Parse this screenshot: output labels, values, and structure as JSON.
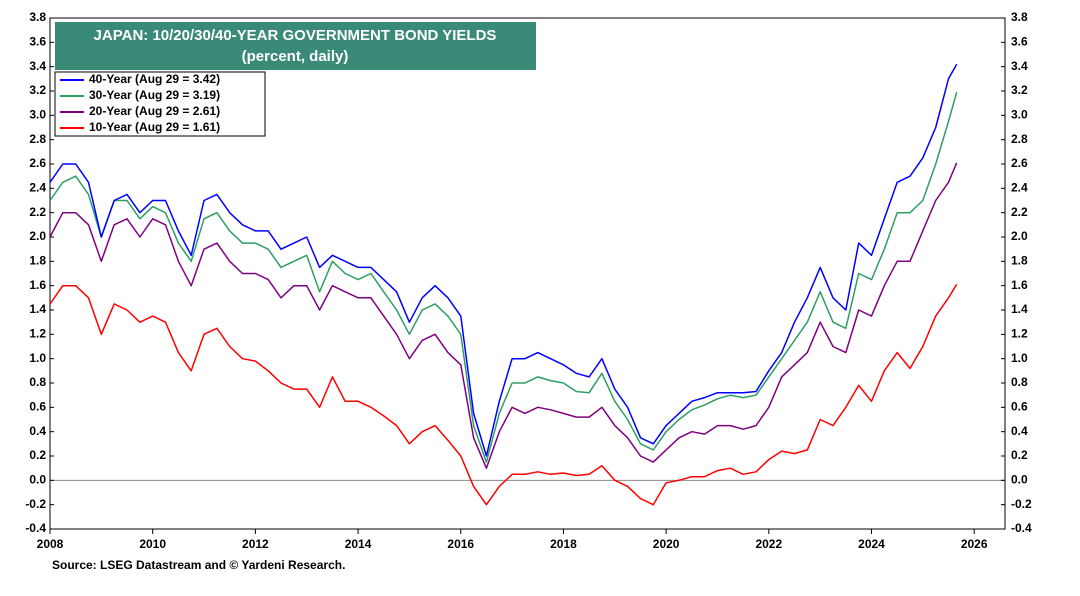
{
  "chart_data": {
    "type": "line",
    "title": "JAPAN: 10/20/30/40-YEAR GOVERNMENT BOND YIELDS",
    "subtitle": "(percent, daily)",
    "source": "Source: LSEG Datastream and © Yardeni Research.",
    "legend": "upper left",
    "zero_line": true,
    "xlim": [
      2008,
      2026.6
    ],
    "xticks": [
      2008,
      2010,
      2012,
      2014,
      2016,
      2018,
      2020,
      2022,
      2024,
      2026
    ],
    "ylim": [
      -0.4,
      3.8
    ],
    "yticks": [
      -0.4,
      -0.2,
      {
        "value": 0,
        "label": "0.0"
      },
      0.2,
      0.4,
      0.6,
      0.8,
      {
        "value": 1,
        "label": "1.0"
      },
      1.2,
      1.4,
      1.6,
      1.8,
      {
        "value": 2,
        "label": "2.0"
      },
      2.2,
      2.4,
      2.6,
      2.8,
      {
        "value": 3,
        "label": "3.0"
      },
      3.2,
      3.4,
      3.6,
      3.8
    ],
    "y2lim": [
      -0.4,
      3.8
    ],
    "y2ticks": [
      -0.4,
      -0.2,
      {
        "value": 0,
        "label": "0.0"
      },
      0.2,
      0.4,
      0.6,
      0.8,
      {
        "value": 1,
        "label": "1.0"
      },
      1.2,
      1.4,
      1.6,
      1.8,
      {
        "value": 2,
        "label": "2.0"
      },
      2.2,
      2.4,
      2.6,
      2.8,
      {
        "value": 3,
        "label": "3.0"
      },
      3.2,
      3.4,
      3.6,
      3.8
    ],
    "x": [
      2008,
      2008.25,
      2008.5,
      2008.75,
      2009,
      2009.25,
      2009.5,
      2009.75,
      2010,
      2010.25,
      2010.5,
      2010.75,
      2011,
      2011.25,
      2011.5,
      2011.75,
      2012,
      2012.25,
      2012.5,
      2012.75,
      2013,
      2013.25,
      2013.5,
      2013.75,
      2014,
      2014.25,
      2014.5,
      2014.75,
      2015,
      2015.25,
      2015.5,
      2015.75,
      2016,
      2016.25,
      2016.5,
      2016.75,
      2017,
      2017.25,
      2017.5,
      2017.75,
      2018,
      2018.25,
      2018.5,
      2018.75,
      2019,
      2019.25,
      2019.5,
      2019.75,
      2020,
      2020.25,
      2020.5,
      2020.75,
      2021,
      2021.25,
      2021.5,
      2021.75,
      2022,
      2022.25,
      2022.5,
      2022.75,
      2023,
      2023.25,
      2023.5,
      2023.75,
      2024,
      2024.25,
      2024.5,
      2024.75,
      2025,
      2025.25,
      2025.5,
      2025.66
    ],
    "series": [
      {
        "name": "40-Year (Aug 29 = 3.42)",
        "color": "#0000ff",
        "values": [
          2.45,
          2.6,
          2.6,
          2.45,
          2.0,
          2.3,
          2.35,
          2.2,
          2.3,
          2.3,
          2.05,
          1.85,
          2.3,
          2.35,
          2.2,
          2.1,
          2.05,
          2.05,
          1.9,
          1.95,
          2.0,
          1.75,
          1.85,
          1.8,
          1.75,
          1.75,
          1.65,
          1.55,
          1.3,
          1.5,
          1.6,
          1.5,
          1.35,
          0.55,
          0.2,
          0.65,
          1.0,
          1.0,
          1.05,
          1.0,
          0.95,
          0.88,
          0.85,
          1.0,
          0.75,
          0.6,
          0.35,
          0.3,
          0.45,
          0.55,
          0.65,
          0.68,
          0.72,
          0.72,
          0.72,
          0.73,
          0.9,
          1.05,
          1.3,
          1.5,
          1.75,
          1.5,
          1.4,
          1.95,
          1.85,
          2.15,
          2.45,
          2.5,
          2.65,
          2.9,
          3.3,
          3.42
        ]
      },
      {
        "name": "30-Year (Aug 29 = 3.19)",
        "color": "#2e9e62",
        "values": [
          2.3,
          2.45,
          2.5,
          2.35,
          2.0,
          2.3,
          2.3,
          2.15,
          2.25,
          2.2,
          1.95,
          1.8,
          2.15,
          2.2,
          2.05,
          1.95,
          1.95,
          1.9,
          1.75,
          1.8,
          1.85,
          1.55,
          1.8,
          1.7,
          1.65,
          1.7,
          1.55,
          1.4,
          1.2,
          1.4,
          1.45,
          1.35,
          1.2,
          0.45,
          0.15,
          0.55,
          0.8,
          0.8,
          0.85,
          0.82,
          0.8,
          0.73,
          0.72,
          0.88,
          0.65,
          0.5,
          0.3,
          0.25,
          0.4,
          0.5,
          0.58,
          0.62,
          0.67,
          0.7,
          0.68,
          0.7,
          0.85,
          1.0,
          1.15,
          1.3,
          1.55,
          1.3,
          1.25,
          1.7,
          1.65,
          1.9,
          2.2,
          2.2,
          2.3,
          2.6,
          2.95,
          3.19
        ]
      },
      {
        "name": "20-Year (Aug 29 = 2.61)",
        "color": "#800080",
        "values": [
          2.0,
          2.2,
          2.2,
          2.1,
          1.8,
          2.1,
          2.15,
          2.0,
          2.15,
          2.1,
          1.8,
          1.6,
          1.9,
          1.95,
          1.8,
          1.7,
          1.7,
          1.65,
          1.5,
          1.6,
          1.6,
          1.4,
          1.6,
          1.55,
          1.5,
          1.5,
          1.35,
          1.2,
          1.0,
          1.15,
          1.2,
          1.05,
          0.95,
          0.35,
          0.1,
          0.4,
          0.6,
          0.55,
          0.6,
          0.58,
          0.55,
          0.52,
          0.52,
          0.6,
          0.45,
          0.35,
          0.2,
          0.15,
          0.25,
          0.35,
          0.4,
          0.38,
          0.45,
          0.45,
          0.42,
          0.45,
          0.6,
          0.85,
          0.95,
          1.05,
          1.3,
          1.1,
          1.05,
          1.4,
          1.35,
          1.6,
          1.8,
          1.8,
          2.05,
          2.3,
          2.45,
          2.61
        ]
      },
      {
        "name": "10-Year (Aug 29 = 1.61)",
        "color": "#ff0000",
        "values": [
          1.45,
          1.6,
          1.6,
          1.5,
          1.2,
          1.45,
          1.4,
          1.3,
          1.35,
          1.3,
          1.05,
          0.9,
          1.2,
          1.25,
          1.1,
          1.0,
          0.98,
          0.9,
          0.8,
          0.75,
          0.75,
          0.6,
          0.85,
          0.65,
          0.65,
          0.6,
          0.53,
          0.45,
          0.3,
          0.4,
          0.45,
          0.33,
          0.2,
          -0.05,
          -0.2,
          -0.05,
          0.05,
          0.05,
          0.07,
          0.05,
          0.06,
          0.04,
          0.05,
          0.12,
          0.0,
          -0.05,
          -0.15,
          -0.2,
          -0.02,
          0.0,
          0.03,
          0.03,
          0.08,
          0.1,
          0.05,
          0.07,
          0.17,
          0.24,
          0.22,
          0.25,
          0.5,
          0.45,
          0.6,
          0.78,
          0.65,
          0.9,
          1.05,
          0.92,
          1.1,
          1.35,
          1.5,
          1.61
        ]
      }
    ]
  }
}
